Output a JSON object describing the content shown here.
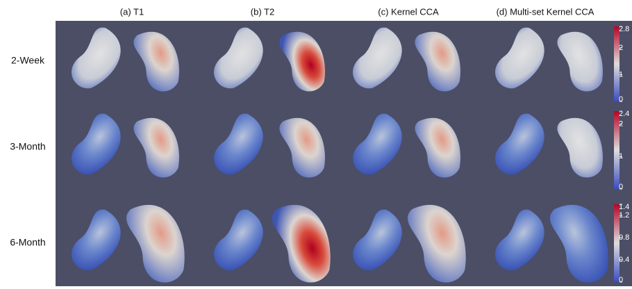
{
  "columns": [
    "(a) T1",
    "(b) T2",
    "(c) Kernel CCA",
    "(d) Multi-set Kernel CCA"
  ],
  "rows": [
    {
      "label": "2-Week",
      "colorbar": {
        "ticks": [
          "2.8",
          "2",
          "1",
          "0"
        ]
      }
    },
    {
      "label": "3-Month",
      "colorbar": {
        "ticks": [
          "2.4",
          "2",
          "1",
          "0"
        ]
      }
    },
    {
      "label": "6-Month",
      "colorbar": {
        "ticks": [
          "1.4",
          "1.2",
          "0.8",
          "0.4",
          "0"
        ]
      }
    }
  ]
}
